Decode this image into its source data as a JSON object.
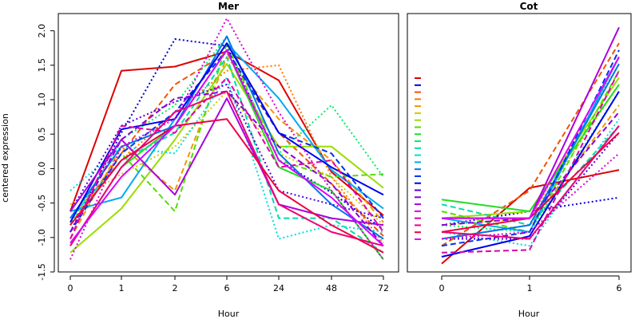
{
  "ylabel": "centered expression",
  "chart_data": [
    {
      "type": "line",
      "title": "Mer",
      "xlabel": "Hour",
      "ylabel": "centered expression",
      "categories": [
        "0",
        "1",
        "2",
        "6",
        "24",
        "48",
        "72"
      ],
      "ylim": [
        -1.5,
        2.25
      ],
      "yticks": [
        -1.5,
        -1.0,
        -0.5,
        0.0,
        0.5,
        1.0,
        1.5,
        2.0
      ],
      "ytick_labels": [
        "-1.5",
        "-1.0",
        "-0.5",
        "0.0",
        "0.5",
        "1.0",
        "1.5",
        "2.0"
      ],
      "grid": false,
      "series": [
        {
          "color": "#dd0000",
          "dash": "solid",
          "values": [
            -0.62,
            1.42,
            1.48,
            1.7,
            1.28,
            -0.05,
            -0.68
          ]
        },
        {
          "color": "#0000dd",
          "dash": "dotted",
          "values": [
            -0.92,
            0.52,
            1.88,
            1.78,
            0.12,
            -0.35,
            -0.88
          ]
        },
        {
          "color": "#ee5500",
          "dash": "dashed",
          "values": [
            -0.82,
            0.22,
            1.22,
            1.68,
            0.52,
            -0.22,
            -0.98
          ]
        },
        {
          "color": "#ff7700",
          "dash": "dotted",
          "values": [
            -0.72,
            0.12,
            0.82,
            1.42,
            1.5,
            -0.12,
            -1.08
          ]
        },
        {
          "color": "#ee9900",
          "dash": "dashed",
          "values": [
            -1.02,
            0.32,
            -0.32,
            1.62,
            0.72,
            0.12,
            -0.78
          ]
        },
        {
          "color": "#cccc00",
          "dash": "dotted",
          "values": [
            -0.52,
            -0.08,
            0.32,
            1.12,
            0.22,
            -0.12,
            -0.82
          ]
        },
        {
          "color": "#99dd00",
          "dash": "solid",
          "values": [
            -1.22,
            -0.58,
            0.42,
            1.52,
            0.32,
            0.32,
            -0.28
          ]
        },
        {
          "color": "#55dd00",
          "dash": "dashed",
          "values": [
            -0.92,
            0.22,
            -0.62,
            1.82,
            0.12,
            -0.12,
            -0.08
          ]
        },
        {
          "color": "#22dd22",
          "dash": "solid",
          "values": [
            -1.12,
            0.02,
            0.62,
            1.72,
            0.02,
            -0.32,
            -1.32
          ]
        },
        {
          "color": "#00ee66",
          "dash": "dotted",
          "values": [
            -0.82,
            0.42,
            0.92,
            1.92,
            0.22,
            0.92,
            -0.12
          ]
        },
        {
          "color": "#00ddaa",
          "dash": "dashed",
          "values": [
            -0.72,
            0.12,
            0.52,
            1.62,
            -0.72,
            -0.72,
            -1.22
          ]
        },
        {
          "color": "#00dddd",
          "dash": "dotted",
          "values": [
            -0.32,
            0.32,
            0.22,
            1.32,
            -1.02,
            -0.82,
            -0.92
          ]
        },
        {
          "color": "#00aaee",
          "dash": "solid",
          "values": [
            -0.62,
            -0.42,
            0.72,
            1.82,
            1.02,
            -0.02,
            -0.58
          ]
        },
        {
          "color": "#0077ee",
          "dash": "solid",
          "values": [
            -0.72,
            0.32,
            0.62,
            1.92,
            0.22,
            -0.52,
            -1.02
          ]
        },
        {
          "color": "#0033ee",
          "dash": "dashed",
          "values": [
            -0.92,
            0.22,
            0.82,
            1.72,
            0.52,
            0.22,
            -0.72
          ]
        },
        {
          "color": "#0000ee",
          "dash": "solid",
          "values": [
            -0.78,
            0.57,
            0.72,
            1.82,
            0.52,
            0.02,
            -0.38
          ]
        },
        {
          "color": "#5500dd",
          "dash": "dotted",
          "values": [
            -0.62,
            0.62,
            0.97,
            1.22,
            -0.32,
            -0.52,
            -0.72
          ]
        },
        {
          "color": "#8800dd",
          "dash": "dashed",
          "values": [
            -0.92,
            0.42,
            1.02,
            1.12,
            0.32,
            -0.22,
            -1.12
          ]
        },
        {
          "color": "#aa00dd",
          "dash": "solid",
          "values": [
            -0.62,
            0.42,
            -0.38,
            1.02,
            -0.52,
            -0.72,
            -0.82
          ]
        },
        {
          "color": "#dd00dd",
          "dash": "dotted",
          "values": [
            -1.32,
            0.32,
            0.72,
            2.18,
            0.82,
            -0.32,
            -1.32
          ]
        },
        {
          "color": "#dd00aa",
          "dash": "dashed",
          "values": [
            -1.02,
            0.62,
            0.52,
            1.32,
            0.02,
            0.12,
            -0.92
          ]
        },
        {
          "color": "#ee0077",
          "dash": "solid",
          "values": [
            -1.12,
            0.02,
            0.82,
            1.12,
            -0.52,
            -0.92,
            -1.12
          ]
        },
        {
          "color": "#ee0044",
          "dash": "solid",
          "values": [
            -0.82,
            0.12,
            0.62,
            0.72,
            -0.32,
            -0.82,
            -1.22
          ]
        },
        {
          "color": "#dd00ff",
          "dash": "solid",
          "values": [
            -1.08,
            -0.12,
            0.62,
            1.72,
            0.12,
            -0.42,
            -1.12
          ]
        }
      ]
    },
    {
      "type": "line",
      "title": "Cot",
      "xlabel": "Hour",
      "categories": [
        "0",
        "1",
        "6"
      ],
      "ylim": [
        -1.5,
        2.25
      ],
      "grid": false,
      "series": [
        {
          "color": "#dd0000",
          "dash": "solid",
          "values": [
            -1.38,
            -0.28,
            -0.02
          ]
        },
        {
          "color": "#0000dd",
          "dash": "dotted",
          "values": [
            -0.82,
            -0.62,
            -0.42
          ]
        },
        {
          "color": "#ee5500",
          "dash": "dashed",
          "values": [
            -1.12,
            -0.32,
            1.82
          ]
        },
        {
          "color": "#ff7700",
          "dash": "dotted",
          "values": [
            -0.92,
            -0.72,
            1.52
          ]
        },
        {
          "color": "#ee9900",
          "dash": "dashed",
          "values": [
            -1.02,
            -0.82,
            0.92
          ]
        },
        {
          "color": "#cccc00",
          "dash": "dotted",
          "values": [
            -0.82,
            -0.72,
            1.22
          ]
        },
        {
          "color": "#99dd00",
          "dash": "solid",
          "values": [
            -0.72,
            -0.62,
            1.32
          ]
        },
        {
          "color": "#55dd00",
          "dash": "dashed",
          "values": [
            -0.62,
            -0.92,
            1.42
          ]
        },
        {
          "color": "#22dd22",
          "dash": "solid",
          "values": [
            -0.45,
            -0.62,
            1.22
          ]
        },
        {
          "color": "#00ee66",
          "dash": "dotted",
          "values": [
            -0.82,
            -0.92,
            1.12
          ]
        },
        {
          "color": "#00ddaa",
          "dash": "dashed",
          "values": [
            -0.52,
            -0.82,
            0.62
          ]
        },
        {
          "color": "#00dddd",
          "dash": "dotted",
          "values": [
            -0.92,
            -1.12,
            0.72
          ]
        },
        {
          "color": "#00aaee",
          "dash": "solid",
          "values": [
            -0.72,
            -0.92,
            1.62
          ]
        },
        {
          "color": "#0077ee",
          "dash": "solid",
          "values": [
            -1.02,
            -0.82,
            1.52
          ]
        },
        {
          "color": "#0033ee",
          "dash": "dashed",
          "values": [
            -1.12,
            -0.92,
            1.72
          ]
        },
        {
          "color": "#0000ee",
          "dash": "solid",
          "values": [
            -1.28,
            -0.98,
            1.12
          ]
        },
        {
          "color": "#5500dd",
          "dash": "dotted",
          "values": [
            -1.02,
            -1.02,
            0.52
          ]
        },
        {
          "color": "#8800dd",
          "dash": "dashed",
          "values": [
            -0.82,
            -0.72,
            0.82
          ]
        },
        {
          "color": "#aa00dd",
          "dash": "solid",
          "values": [
            -0.72,
            -0.72,
            2.05
          ]
        },
        {
          "color": "#dd00dd",
          "dash": "dotted",
          "values": [
            -1.02,
            -0.92,
            0.22
          ]
        },
        {
          "color": "#dd00aa",
          "dash": "dashed",
          "values": [
            -1.22,
            -1.18,
            1.42
          ]
        },
        {
          "color": "#ee0077",
          "dash": "solid",
          "values": [
            -0.92,
            -1.02,
            0.62
          ]
        },
        {
          "color": "#ee0044",
          "dash": "solid",
          "values": [
            -0.92,
            -0.72,
            0.52
          ]
        },
        {
          "color": "#dd00ff",
          "dash": "solid",
          "values": [
            -0.72,
            -0.72,
            1.62
          ]
        }
      ]
    }
  ]
}
